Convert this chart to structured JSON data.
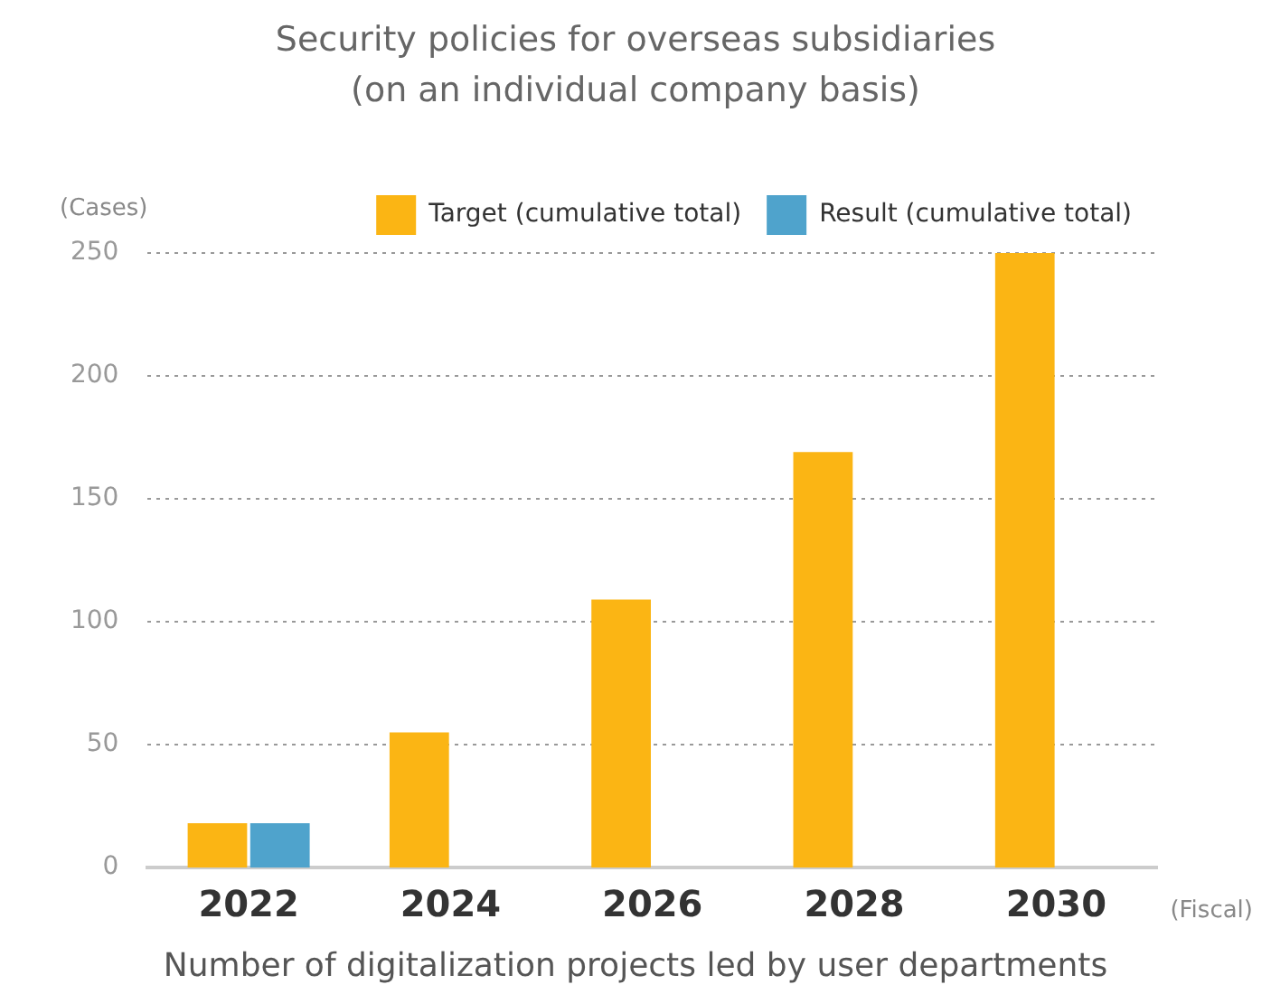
{
  "chart_data": {
    "type": "bar",
    "title": "Security policies for overseas subsidiaries\n(on an individual company basis)",
    "ylabel": "(Cases)",
    "xlabel": "(Fiscal)",
    "annotations": [
      "Number of digitalization projects led by user departments"
    ],
    "categories": [
      "2022",
      "2024",
      "2026",
      "2028",
      "2030"
    ],
    "series": [
      {
        "name": "Target (cumulative total)",
        "color": "#fbb514",
        "values": [
          18,
          55,
          109,
          169,
          250
        ]
      },
      {
        "name": "Result (cumulative total)",
        "color": "#4fa3cc",
        "values": [
          18,
          null,
          null,
          null,
          null
        ]
      }
    ],
    "ylim": [
      0,
      250
    ],
    "yticks": [
      0,
      50,
      100,
      150,
      200,
      250
    ],
    "grid": "y",
    "legend": "top right"
  }
}
